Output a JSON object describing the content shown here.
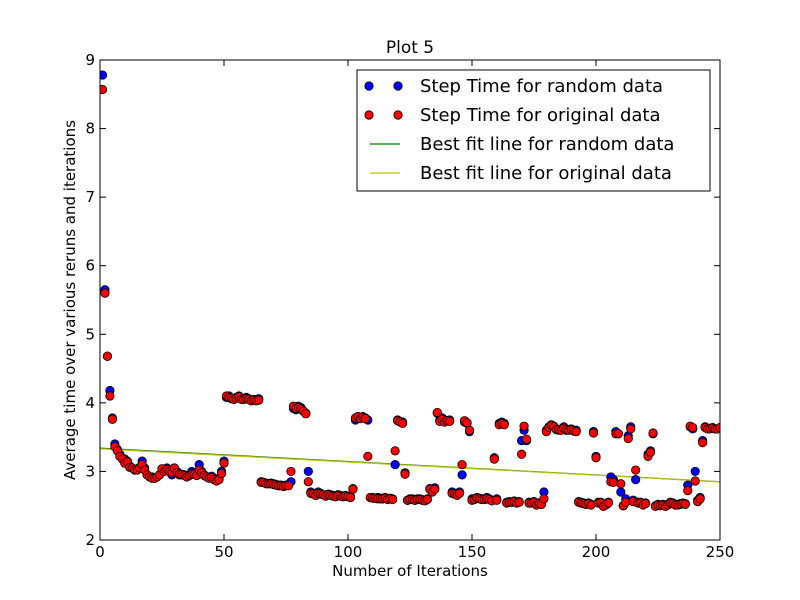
{
  "chart_data": {
    "type": "scatter",
    "title": "Plot 5",
    "xlabel": "Number of Iterations",
    "ylabel": "Average time over various reruns and iterations",
    "xlim": [
      0,
      250
    ],
    "ylim": [
      2,
      9
    ],
    "xticks": [
      0,
      50,
      100,
      150,
      200,
      250
    ],
    "yticks": [
      2,
      3,
      4,
      5,
      6,
      7,
      8,
      9
    ],
    "grid": false,
    "legend_position": "top-right",
    "series": [
      {
        "name": "Step Time for random data",
        "kind": "scatter",
        "color": "#0000ff",
        "x": [
          1,
          2,
          3,
          4,
          5,
          6,
          7,
          8,
          9,
          10,
          11,
          12,
          13,
          14,
          15,
          16,
          17,
          18,
          19,
          20,
          21,
          22,
          23,
          24,
          25,
          26,
          27,
          28,
          29,
          30,
          31,
          32,
          33,
          34,
          35,
          36,
          37,
          38,
          39,
          40,
          41,
          42,
          43,
          44,
          45,
          46,
          47,
          48,
          49,
          50,
          51,
          52,
          53,
          54,
          55,
          56,
          57,
          58,
          59,
          60,
          61,
          62,
          63,
          64,
          65,
          66,
          67,
          68,
          69,
          70,
          71,
          72,
          73,
          74,
          75,
          76,
          77,
          78,
          79,
          80,
          81,
          82,
          83,
          84,
          85,
          86,
          87,
          88,
          89,
          90,
          91,
          92,
          93,
          94,
          95,
          96,
          97,
          98,
          99,
          100,
          101,
          102,
          103,
          104,
          105,
          106,
          107,
          108,
          109,
          110,
          111,
          112,
          113,
          114,
          115,
          116,
          117,
          118,
          119,
          120,
          121,
          122,
          123,
          124,
          125,
          126,
          127,
          128,
          129,
          130,
          131,
          132,
          133,
          134,
          135,
          136,
          137,
          138,
          139,
          140,
          141,
          142,
          143,
          144,
          145,
          146,
          147,
          148,
          149,
          150,
          151,
          152,
          153,
          154,
          155,
          156,
          157,
          158,
          159,
          160,
          161,
          162,
          163,
          164,
          165,
          166,
          167,
          168,
          169,
          170,
          171,
          172,
          173,
          174,
          175,
          176,
          177,
          178,
          179,
          180,
          181,
          182,
          183,
          184,
          185,
          186,
          187,
          188,
          189,
          190,
          191,
          192,
          193,
          194,
          195,
          196,
          197,
          198,
          199,
          200,
          201,
          202,
          203,
          204,
          205,
          206,
          207,
          208,
          209,
          210,
          211,
          212,
          213,
          214,
          215,
          216,
          217,
          218,
          219,
          220,
          221,
          222,
          223,
          224,
          225,
          226,
          227,
          228,
          229,
          230,
          231,
          232,
          233,
          234,
          235,
          236,
          237,
          238,
          239,
          240,
          241,
          242,
          243,
          244,
          245,
          246,
          247,
          248,
          249,
          250
        ],
        "y": [
          8.78,
          5.65,
          4.68,
          4.18,
          3.78,
          3.4,
          3.32,
          3.25,
          3.2,
          3.18,
          3.15,
          3.08,
          3.05,
          3.02,
          3.03,
          3.06,
          3.15,
          3.05,
          2.95,
          2.92,
          2.92,
          2.9,
          2.92,
          2.95,
          3.0,
          3.02,
          3.05,
          3.0,
          2.95,
          3.05,
          3.0,
          2.95,
          2.96,
          2.95,
          2.92,
          2.94,
          3.0,
          2.98,
          2.96,
          3.1,
          3.0,
          2.95,
          2.92,
          2.92,
          2.93,
          2.9,
          2.88,
          2.9,
          3.0,
          3.15,
          4.08,
          4.1,
          4.06,
          4.05,
          4.08,
          4.1,
          4.06,
          4.05,
          4.08,
          4.06,
          4.03,
          4.05,
          4.05,
          4.06,
          2.85,
          2.84,
          2.83,
          2.82,
          2.83,
          2.82,
          2.81,
          2.8,
          2.8,
          2.79,
          2.8,
          2.8,
          2.85,
          3.92,
          3.9,
          3.95,
          3.93,
          3.88,
          3.85,
          3.0,
          2.7,
          2.68,
          2.65,
          2.7,
          2.68,
          2.66,
          2.65,
          2.67,
          2.66,
          2.65,
          2.64,
          2.66,
          2.65,
          2.64,
          2.65,
          2.64,
          2.63,
          2.75,
          3.75,
          3.8,
          3.78,
          3.8,
          3.78,
          3.75,
          2.62,
          2.62,
          2.61,
          2.62,
          2.61,
          2.6,
          2.62,
          2.6,
          2.61,
          2.6,
          3.1,
          3.75,
          3.73,
          3.72,
          2.98,
          2.58,
          2.6,
          2.6,
          2.58,
          2.6,
          2.6,
          2.59,
          2.58,
          2.6,
          2.75,
          2.72,
          2.76,
          3.85,
          3.75,
          3.78,
          3.75,
          3.74,
          3.75,
          2.7,
          2.68,
          2.66,
          2.7,
          2.95,
          3.72,
          3.7,
          3.58,
          2.6,
          2.6,
          2.62,
          2.61,
          2.6,
          2.6,
          2.62,
          2.6,
          2.58,
          3.2,
          2.6,
          3.7,
          3.72,
          3.7,
          2.55,
          2.56,
          2.55,
          2.57,
          2.55,
          2.56,
          3.45,
          3.6,
          3.45,
          2.55,
          2.55,
          2.56,
          2.52,
          2.54,
          2.53,
          2.7,
          3.6,
          3.65,
          3.68,
          3.66,
          3.62,
          3.6,
          3.62,
          3.65,
          3.6,
          3.61,
          3.62,
          3.6,
          3.6,
          2.56,
          2.55,
          2.54,
          2.53,
          2.54,
          2.52,
          3.58,
          3.22,
          2.55,
          2.55,
          2.5,
          2.52,
          2.55,
          2.92,
          2.88,
          3.58,
          3.55,
          2.7,
          2.5,
          2.6,
          3.52,
          3.65,
          2.58,
          2.88,
          2.55,
          2.55,
          2.52,
          2.54,
          3.25,
          3.3,
          3.55,
          2.5,
          2.52,
          2.51,
          2.52,
          2.5,
          2.52,
          2.55,
          2.54,
          2.52,
          2.52,
          2.53,
          2.54,
          2.53,
          2.8,
          3.65,
          3.62,
          3.0,
          2.58,
          2.62,
          3.45,
          3.65,
          3.62,
          3.63,
          3.64,
          3.62,
          3.62,
          3.64
        ]
      },
      {
        "name": "Step Time for original data",
        "kind": "scatter",
        "color": "#ff0000",
        "x": [
          1,
          2,
          3,
          4,
          5,
          6,
          7,
          8,
          9,
          10,
          11,
          12,
          13,
          14,
          15,
          16,
          17,
          18,
          19,
          20,
          21,
          22,
          23,
          24,
          25,
          26,
          27,
          28,
          29,
          30,
          31,
          32,
          33,
          34,
          35,
          36,
          37,
          38,
          39,
          40,
          41,
          42,
          43,
          44,
          45,
          46,
          47,
          48,
          49,
          50,
          51,
          52,
          53,
          54,
          55,
          56,
          57,
          58,
          59,
          60,
          61,
          62,
          63,
          64,
          65,
          66,
          67,
          68,
          69,
          70,
          71,
          72,
          73,
          74,
          75,
          76,
          77,
          78,
          79,
          80,
          81,
          82,
          83,
          84,
          85,
          86,
          87,
          88,
          89,
          90,
          91,
          92,
          93,
          94,
          95,
          96,
          97,
          98,
          99,
          100,
          101,
          102,
          103,
          104,
          105,
          106,
          107,
          108,
          109,
          110,
          111,
          112,
          113,
          114,
          115,
          116,
          117,
          118,
          119,
          120,
          121,
          122,
          123,
          124,
          125,
          126,
          127,
          128,
          129,
          130,
          131,
          132,
          133,
          134,
          135,
          136,
          137,
          138,
          139,
          140,
          141,
          142,
          143,
          144,
          145,
          146,
          147,
          148,
          149,
          150,
          151,
          152,
          153,
          154,
          155,
          156,
          157,
          158,
          159,
          160,
          161,
          162,
          163,
          164,
          165,
          166,
          167,
          168,
          169,
          170,
          171,
          172,
          173,
          174,
          175,
          176,
          177,
          178,
          179,
          180,
          181,
          182,
          183,
          184,
          185,
          186,
          187,
          188,
          189,
          190,
          191,
          192,
          193,
          194,
          195,
          196,
          197,
          198,
          199,
          200,
          201,
          202,
          203,
          204,
          205,
          206,
          207,
          208,
          209,
          210,
          211,
          212,
          213,
          214,
          215,
          216,
          217,
          218,
          219,
          220,
          221,
          222,
          223,
          224,
          225,
          226,
          227,
          228,
          229,
          230,
          231,
          232,
          233,
          234,
          235,
          236,
          237,
          238,
          239,
          240,
          241,
          242,
          243,
          244,
          245,
          246,
          247,
          248,
          249,
          250
        ],
        "y": [
          8.57,
          5.6,
          4.68,
          4.1,
          3.76,
          3.36,
          3.3,
          3.22,
          3.18,
          3.12,
          3.14,
          3.06,
          3.05,
          3.03,
          3.02,
          3.05,
          3.1,
          3.02,
          2.95,
          2.92,
          2.9,
          2.9,
          2.92,
          2.95,
          3.04,
          3.0,
          3.03,
          3.0,
          2.98,
          3.05,
          2.98,
          2.96,
          2.95,
          2.94,
          2.92,
          2.94,
          2.96,
          2.96,
          2.94,
          3.02,
          2.98,
          2.94,
          2.92,
          2.9,
          2.91,
          2.88,
          2.86,
          2.88,
          2.97,
          3.12,
          4.1,
          4.08,
          4.07,
          4.05,
          4.07,
          4.09,
          4.05,
          4.05,
          4.06,
          4.05,
          4.03,
          4.04,
          4.03,
          4.04,
          2.84,
          2.84,
          2.82,
          2.82,
          2.82,
          2.81,
          2.8,
          2.79,
          2.79,
          2.78,
          2.79,
          2.79,
          3.0,
          3.95,
          3.92,
          3.93,
          3.91,
          3.88,
          3.84,
          2.85,
          2.68,
          2.67,
          2.65,
          2.68,
          2.67,
          2.66,
          2.64,
          2.66,
          2.65,
          2.64,
          2.63,
          2.65,
          2.64,
          2.63,
          2.64,
          2.63,
          2.62,
          2.74,
          3.78,
          3.8,
          3.77,
          3.79,
          3.77,
          3.22,
          2.62,
          2.61,
          2.61,
          2.6,
          2.6,
          2.6,
          2.61,
          2.59,
          2.6,
          2.59,
          3.3,
          3.74,
          3.72,
          3.7,
          2.96,
          2.58,
          2.59,
          2.59,
          2.58,
          2.59,
          2.59,
          2.58,
          2.57,
          2.59,
          2.74,
          2.7,
          2.74,
          3.86,
          3.73,
          3.76,
          3.72,
          3.74,
          3.73,
          2.68,
          2.67,
          2.65,
          2.68,
          3.1,
          3.74,
          3.71,
          3.6,
          2.58,
          2.59,
          2.61,
          2.6,
          2.59,
          2.59,
          2.6,
          2.59,
          2.57,
          3.18,
          2.58,
          3.68,
          3.7,
          3.68,
          2.54,
          2.55,
          2.55,
          2.56,
          2.54,
          2.55,
          3.25,
          3.66,
          3.47,
          2.54,
          2.54,
          2.55,
          2.51,
          2.53,
          2.52,
          2.6,
          3.58,
          3.64,
          3.67,
          3.65,
          3.61,
          3.61,
          3.6,
          3.63,
          3.61,
          3.6,
          3.61,
          3.59,
          3.58,
          2.55,
          2.54,
          2.53,
          2.52,
          2.53,
          2.51,
          3.56,
          3.2,
          2.54,
          2.54,
          2.49,
          2.51,
          2.54,
          2.85,
          2.84,
          3.55,
          3.55,
          2.82,
          2.5,
          2.55,
          3.48,
          3.62,
          2.56,
          3.02,
          2.54,
          2.54,
          2.51,
          2.53,
          3.22,
          3.28,
          3.56,
          2.49,
          2.51,
          2.5,
          2.51,
          2.49,
          2.51,
          2.54,
          2.53,
          2.51,
          2.51,
          2.52,
          2.53,
          2.52,
          2.72,
          3.66,
          3.64,
          2.86,
          2.56,
          2.6,
          3.42,
          3.64,
          3.62,
          3.62,
          3.63,
          3.62,
          3.62,
          3.64
        ]
      },
      {
        "name": "Best fit line for random data",
        "kind": "line",
        "color": "#008000",
        "x": [
          0,
          250
        ],
        "y": [
          3.34,
          2.85
        ]
      },
      {
        "name": "Best fit line for original data",
        "kind": "line",
        "color": "#bfbf00",
        "x": [
          0,
          250
        ],
        "y": [
          3.33,
          2.85
        ]
      }
    ]
  }
}
